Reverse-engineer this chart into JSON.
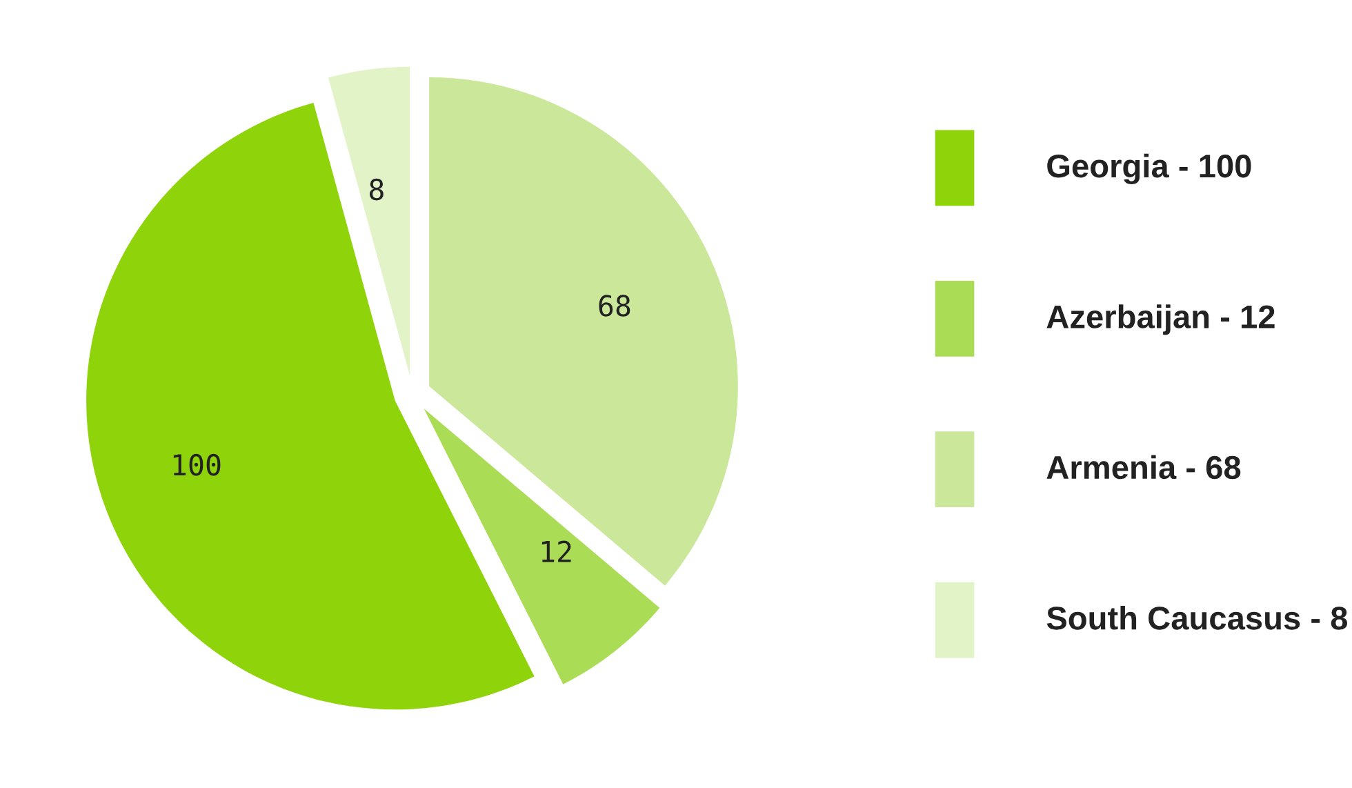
{
  "chart_data": {
    "type": "pie",
    "categories": [
      "Georgia - 100",
      "Azerbaijan - 12",
      "Armenia - 68",
      "South Caucasus - 8"
    ],
    "values": [
      100,
      12,
      68,
      8
    ],
    "colors": [
      "#8fd40a",
      "#aadd55",
      "#cbe89a",
      "#e3f3c8"
    ],
    "data_labels": true,
    "legend": "right"
  }
}
